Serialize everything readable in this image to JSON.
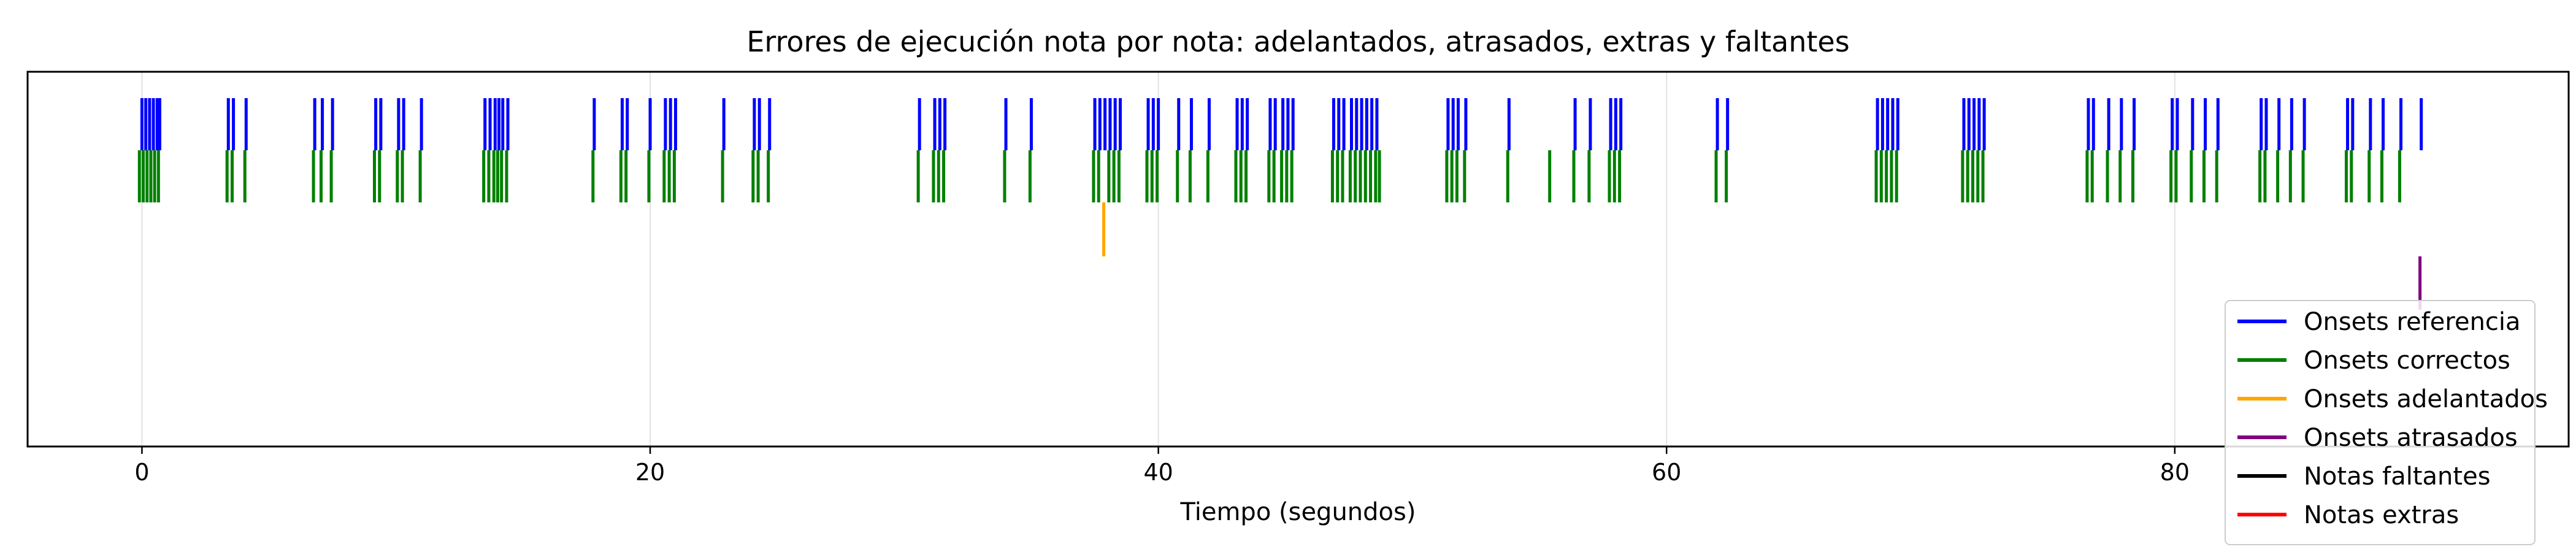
{
  "chart_data": {
    "type": "eventplot",
    "title": "Errores de ejecución nota por nota: adelantados, atrasados, extras y faltantes",
    "xlabel": "Tiempo (segundos)",
    "ylabel": "",
    "xlim": [
      -4.5,
      95.5
    ],
    "xticks": [
      0,
      20,
      40,
      60,
      80
    ],
    "grid": "x-only",
    "legend_position": "bottom-right",
    "series": [
      {
        "name": "Onsets referencia",
        "color": "#0000ff",
        "x": [
          0.0,
          0.15,
          0.3,
          0.45,
          0.6,
          0.7,
          3.4,
          3.6,
          4.1,
          6.8,
          7.1,
          7.5,
          9.2,
          9.4,
          10.1,
          10.3,
          11.0,
          13.5,
          13.7,
          13.9,
          14.05,
          14.2,
          14.4,
          17.8,
          18.9,
          19.1,
          20.0,
          20.6,
          20.8,
          21.0,
          22.9,
          24.1,
          24.3,
          24.7,
          30.6,
          31.2,
          31.4,
          31.6,
          34.0,
          35.0,
          37.5,
          37.7,
          37.9,
          38.1,
          38.3,
          38.5,
          39.6,
          39.8,
          40.0,
          40.8,
          41.3,
          42.0,
          43.1,
          43.3,
          43.5,
          44.4,
          44.6,
          44.9,
          45.1,
          45.3,
          46.9,
          47.1,
          47.3,
          47.6,
          47.8,
          48.0,
          48.2,
          48.4,
          48.6,
          51.4,
          51.6,
          51.8,
          52.1,
          53.8,
          56.4,
          57.0,
          57.8,
          58.0,
          58.2,
          62.0,
          62.4,
          68.3,
          68.5,
          68.7,
          68.9,
          69.1,
          71.7,
          71.9,
          72.1,
          72.3,
          72.5,
          76.6,
          76.8,
          77.4,
          77.9,
          78.4,
          79.9,
          80.1,
          80.7,
          81.2,
          81.7,
          83.4,
          83.6,
          84.1,
          84.6,
          85.1,
          86.8,
          87.0,
          87.7,
          88.2,
          88.9,
          89.7
        ]
      },
      {
        "name": "Onsets correctos",
        "color": "#008000",
        "x": [
          -0.1,
          0.05,
          0.2,
          0.35,
          0.5,
          0.65,
          3.35,
          3.55,
          4.05,
          6.75,
          7.05,
          7.45,
          9.15,
          9.35,
          10.05,
          10.25,
          10.95,
          13.45,
          13.65,
          13.85,
          14.0,
          14.15,
          14.35,
          17.75,
          18.85,
          19.05,
          19.95,
          20.55,
          20.75,
          20.95,
          22.85,
          24.05,
          24.25,
          24.65,
          30.55,
          31.15,
          31.35,
          31.55,
          33.95,
          34.95,
          37.45,
          37.65,
          38.05,
          38.25,
          38.45,
          39.55,
          39.75,
          39.95,
          40.75,
          41.25,
          41.95,
          43.05,
          43.25,
          43.45,
          44.35,
          44.55,
          44.85,
          45.05,
          45.25,
          46.85,
          47.05,
          47.25,
          47.55,
          47.75,
          47.95,
          48.15,
          48.35,
          48.55,
          48.7,
          51.35,
          51.55,
          51.75,
          52.05,
          53.75,
          55.4,
          56.35,
          56.95,
          57.75,
          57.95,
          58.15,
          61.95,
          62.35,
          68.25,
          68.45,
          68.65,
          68.85,
          69.05,
          71.65,
          71.85,
          72.05,
          72.25,
          72.45,
          76.55,
          76.75,
          77.35,
          77.85,
          78.35,
          79.85,
          80.05,
          80.65,
          81.15,
          81.65,
          83.35,
          83.55,
          84.05,
          84.55,
          85.05,
          86.75,
          86.95,
          87.65,
          88.15,
          88.85
        ]
      },
      {
        "name": "Onsets adelantados",
        "color": "#ffa500",
        "x": [
          37.85
        ]
      },
      {
        "name": "Onsets atrasados",
        "color": "#800080",
        "x": [
          89.65
        ]
      },
      {
        "name": "Notas faltantes",
        "color": "#000000",
        "x": []
      },
      {
        "name": "Notas extras",
        "color": "#ff0000",
        "x": []
      }
    ]
  }
}
